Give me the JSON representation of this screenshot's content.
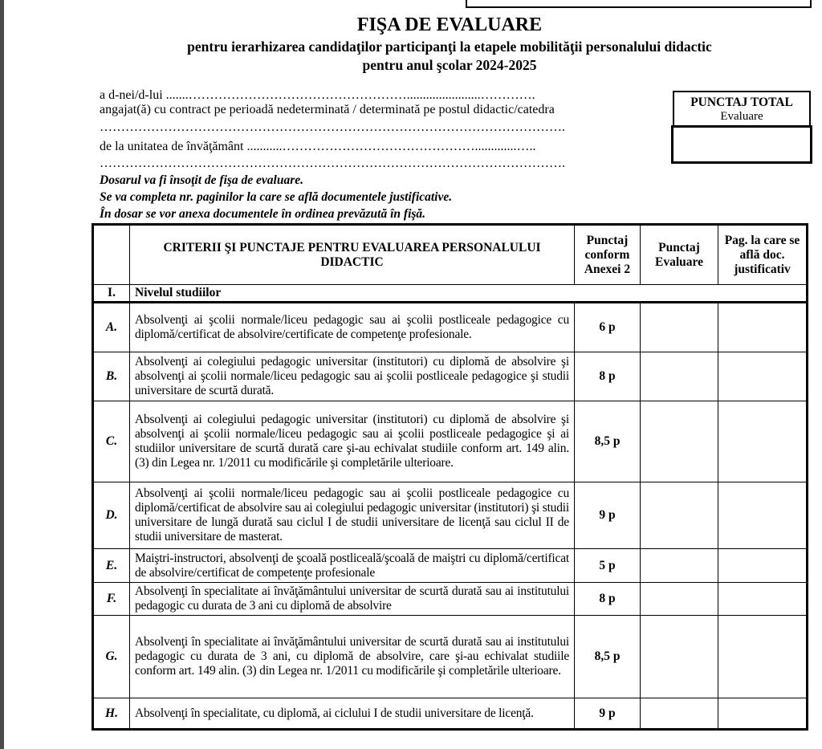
{
  "header": {
    "title": "FIŞA DE EVALUARE",
    "subtitle1": "pentru ierarhizarea candidaţilor participanţi la etapele mobilităţii personalului didactic",
    "subtitle2": "pentru anul şcolar 2024-2025"
  },
  "form": {
    "line1": "a d-nei/d-lui .......…………………………………………….......................………….",
    "line2": "angajat(ă) cu contract pe perioadă nedeterminată / determinată pe postul didactic/catedra",
    "line3": "……………………………………………………………………………………………….",
    "line4": "de la unitatea de învăţământ ...........……………………………………….............…..",
    "line5": "……………………………………………………………………………………………….",
    "punctaj_total_label": "PUNCTAJ TOTAL",
    "punctaj_total_sub": "Evaluare",
    "punctaj_total_value": ""
  },
  "notes": [
    "Dosarul va fi însoţit de fişa de evaluare.",
    "Se va completa nr. paginilor la care se află documentele justificative.",
    "În dosar se vor anexa documentele în ordinea prevăzută în fişă."
  ],
  "table": {
    "headers": [
      "",
      "CRITERII ŞI PUNCTAJE PENTRU EVALUAREA PERSONALULUI DIDACTIC",
      "Punctaj conform Anexei 2",
      "Punctaj Evaluare",
      "Pag. la care se află doc. justificativ"
    ],
    "section": {
      "label": "I.",
      "title": "Nivelul studiilor"
    },
    "rows": [
      {
        "label": "A.",
        "text": "Absolvenţi ai şcolii normale/liceu pedagogic sau ai şcolii postliceale pedagogice cu diplomă/certificat de absolvire/certificate de competenţe profesionale.",
        "points": "6 p"
      },
      {
        "label": "B.",
        "text": "Absolvenţi ai colegiului pedagogic universitar (institutori) cu diplomă de absolvire şi absolvenţi ai şcolii normale/liceu pedagogic sau ai şcolii postliceale pedagogice şi studii universitare de scurtă durată.",
        "points": "8 p"
      },
      {
        "label": "C.",
        "text": "Absolvenţi ai colegiului pedagogic universitar (institutori) cu diplomă de absolvire şi absolvenţi ai şcolii normale/liceu pedagogic sau ai şcolii postliceale pedagogice şi ai studiilor universitare de scurtă durată care şi-au echivalat studiile conform art. 149 alin. (3) din Legea nr. 1/2011 cu modificările şi completările ulterioare.",
        "points": "8,5 p"
      },
      {
        "label": "D.",
        "text": "Absolvenţi ai şcolii normale/liceu pedagogic sau ai şcolii postliceale pedagogice cu diplomă/certificat de absolvire sau ai colegiului pedagogic universitar (institutori) şi studii universitare de lungă durată sau ciclul I de studii universitare de licenţă sau ciclul II de studii universitare de masterat.",
        "points": "9 p"
      },
      {
        "label": "E.",
        "text": "Maiştri-instructori, absolvenţi de şcoală postliceală/şcoală de maiştri cu diplomă/certificat de absolvire/certificat de competenţe profesionale",
        "points": "5 p"
      },
      {
        "label": "F.",
        "text": "Absolvenţi în specialitate ai învăţământului universitar de scurtă durată sau ai institutului pedagogic cu durata de 3 ani cu diplomă de absolvire",
        "points": "8 p"
      },
      {
        "label": "G.",
        "text": "Absolvenţi în specialitate ai învăţământului universitar de scurtă durată sau ai institutului pedagogic cu durata de 3 ani, cu diplomă de absolvire, care şi-au echivalat studiile conform art. 149 alin. (3) din Legea nr. 1/2011 cu modificările şi completările ulterioare.",
        "points": "8,5 p"
      },
      {
        "label": "H.",
        "text": "Absolvenţi în specialitate, cu diplomă, ai ciclului I de studii universitare de licenţă.",
        "points": "9 p"
      }
    ]
  }
}
